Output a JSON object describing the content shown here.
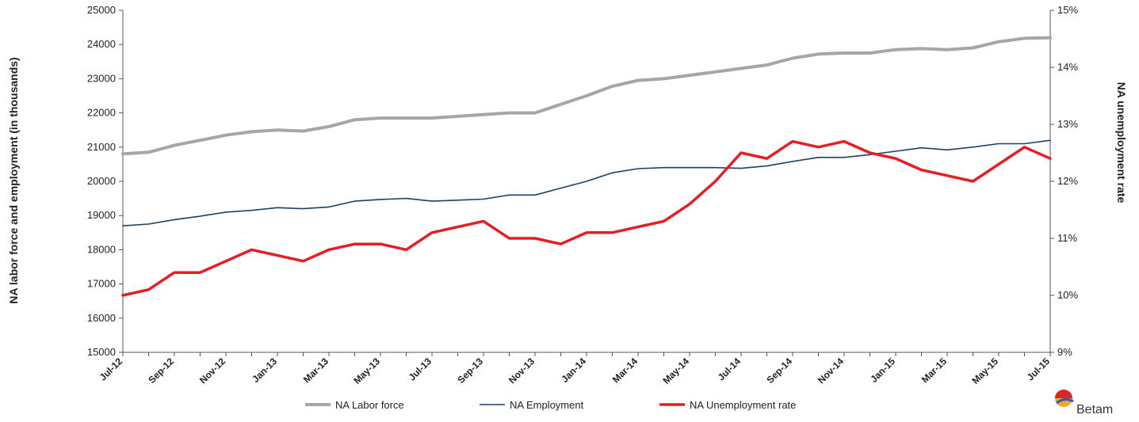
{
  "chart_data": {
    "type": "line",
    "categories": [
      "Jul-12",
      "Aug-12",
      "Sep-12",
      "Oct-12",
      "Nov-12",
      "Dec-12",
      "Jan-13",
      "Feb-13",
      "Mar-13",
      "Apr-13",
      "May-13",
      "Jun-13",
      "Jul-13",
      "Aug-13",
      "Sep-13",
      "Oct-13",
      "Nov-13",
      "Dec-13",
      "Jan-14",
      "Feb-14",
      "Mar-14",
      "Apr-14",
      "May-14",
      "Jun-14",
      "Jul-14",
      "Aug-14",
      "Sep-14",
      "Oct-14",
      "Nov-14",
      "Dec-14",
      "Jan-15",
      "Feb-15",
      "Mar-15",
      "Apr-15",
      "May-15",
      "Jun-15",
      "Jul-15"
    ],
    "x_tick_labels": [
      "Jul-12",
      "Sep-12",
      "Nov-12",
      "Jan-13",
      "Mar-13",
      "May-13",
      "Jul-13",
      "Sep-13",
      "Nov-13",
      "Jan-14",
      "Mar-14",
      "May-14",
      "Jul-14",
      "Sep-14",
      "Nov-14",
      "Jan-15",
      "Mar-15",
      "May-15",
      "Jul-15"
    ],
    "y_left": {
      "label": "NA labor force and employment (in thousands)",
      "range": [
        15000,
        25000
      ],
      "ticks": [
        "15000",
        "16000",
        "17000",
        "18000",
        "19000",
        "20000",
        "21000",
        "22000",
        "23000",
        "24000",
        "25000"
      ]
    },
    "y_right": {
      "label": "NA unemployment rate",
      "range": [
        9,
        15
      ],
      "ticks": [
        "9%",
        "10%",
        "11%",
        "12%",
        "13%",
        "14%",
        "15%"
      ]
    },
    "series": [
      {
        "name": "NA Labor force",
        "axis": "left",
        "color": "#a6a6a6",
        "values": [
          20800,
          20850,
          21050,
          21200,
          21350,
          21450,
          21500,
          21470,
          21600,
          21800,
          21850,
          21850,
          21850,
          21900,
          21950,
          22000,
          22000,
          22250,
          22500,
          22780,
          22950,
          23000,
          23100,
          23200,
          23300,
          23400,
          23600,
          23720,
          23750,
          23750,
          23850,
          23880,
          23850,
          23900,
          24080,
          24180,
          24200
        ]
      },
      {
        "name": "NA Employment",
        "axis": "left",
        "color": "#1f3f66",
        "values": [
          18700,
          18750,
          18880,
          18980,
          19100,
          19150,
          19230,
          19200,
          19250,
          19420,
          19470,
          19500,
          19420,
          19450,
          19480,
          19600,
          19600,
          19800,
          20000,
          20250,
          20370,
          20400,
          20400,
          20400,
          20380,
          20450,
          20580,
          20700,
          20700,
          20780,
          20880,
          20980,
          20920,
          21000,
          21100,
          21100,
          21200
        ]
      },
      {
        "name": "NA Unemployment rate",
        "axis": "right",
        "color": "#e81c24",
        "values": [
          10.0,
          10.1,
          10.4,
          10.4,
          10.6,
          10.8,
          10.7,
          10.6,
          10.8,
          10.9,
          10.9,
          10.8,
          11.1,
          11.2,
          11.3,
          11.0,
          11.0,
          10.9,
          11.1,
          11.1,
          11.2,
          11.3,
          11.6,
          12.0,
          12.5,
          12.4,
          12.7,
          12.6,
          12.7,
          12.5,
          12.4,
          12.2,
          12.1,
          12.0,
          12.3,
          12.6,
          12.4
        ]
      }
    ],
    "grid": false,
    "legend_position": "bottom"
  },
  "logo": {
    "text": "Betam"
  }
}
